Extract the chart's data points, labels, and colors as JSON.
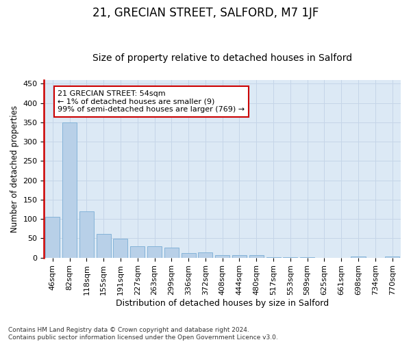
{
  "title": "21, GRECIAN STREET, SALFORD, M7 1JF",
  "subtitle": "Size of property relative to detached houses in Salford",
  "xlabel": "Distribution of detached houses by size in Salford",
  "ylabel": "Number of detached properties",
  "categories": [
    "46sqm",
    "82sqm",
    "118sqm",
    "155sqm",
    "191sqm",
    "227sqm",
    "263sqm",
    "299sqm",
    "336sqm",
    "372sqm",
    "408sqm",
    "444sqm",
    "480sqm",
    "517sqm",
    "553sqm",
    "589sqm",
    "625sqm",
    "661sqm",
    "698sqm",
    "734sqm",
    "770sqm"
  ],
  "values": [
    105,
    350,
    119,
    61,
    48,
    30,
    30,
    25,
    11,
    14,
    6,
    7,
    7,
    1,
    1,
    1,
    0,
    0,
    2,
    0,
    2
  ],
  "bar_color": "#b8d0e8",
  "bar_edge_color": "#7aadd4",
  "highlight_color": "#cc0000",
  "annotation_text": "21 GRECIAN STREET: 54sqm\n← 1% of detached houses are smaller (9)\n99% of semi-detached houses are larger (769) →",
  "annotation_box_color": "#ffffff",
  "annotation_box_edge_color": "#cc0000",
  "ylim": [
    0,
    460
  ],
  "yticks": [
    0,
    50,
    100,
    150,
    200,
    250,
    300,
    350,
    400,
    450
  ],
  "grid_color": "#c5d5e8",
  "background_color": "#dce9f5",
  "footer": "Contains HM Land Registry data © Crown copyright and database right 2024.\nContains public sector information licensed under the Open Government Licence v3.0.",
  "title_fontsize": 12,
  "subtitle_fontsize": 10,
  "xlabel_fontsize": 9,
  "ylabel_fontsize": 8.5,
  "tick_fontsize": 8,
  "annotation_fontsize": 8,
  "footer_fontsize": 6.5
}
